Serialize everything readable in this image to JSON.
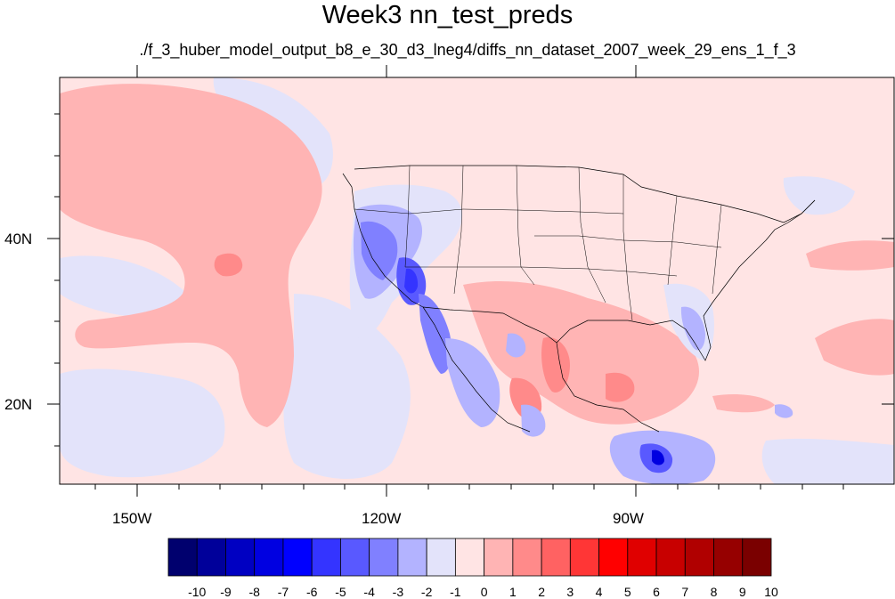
{
  "title": "Week3 nn_test_preds",
  "subtitle": "./f_3_huber_model_output_b8_e_30_d3_lneg4/diffs_nn_dataset_2007_week_29_ens_1_f_3",
  "axes": {
    "x_labels": [
      "150W",
      "120W",
      "90W"
    ],
    "y_labels": [
      "40N",
      "20N"
    ]
  },
  "colorbar": {
    "labels": [
      "-10",
      "-9",
      "-8",
      "-7",
      "-6",
      "-5",
      "-4",
      "-3",
      "-2",
      "-1",
      "0",
      "1",
      "2",
      "3",
      "4",
      "5",
      "6",
      "7",
      "8",
      "9",
      "10"
    ],
    "colors": [
      "#00006e",
      "#00009a",
      "#0000c2",
      "#0000e1",
      "#0000ff",
      "#3434ff",
      "#5959ff",
      "#8080ff",
      "#b3b3ff",
      "#e3e3fa",
      "#ffe4e4",
      "#ffb4b4",
      "#ff8a8a",
      "#ff6262",
      "#ff3636",
      "#ff0000",
      "#e00000",
      "#c80000",
      "#b00000",
      "#960000",
      "#7a0000"
    ]
  }
}
